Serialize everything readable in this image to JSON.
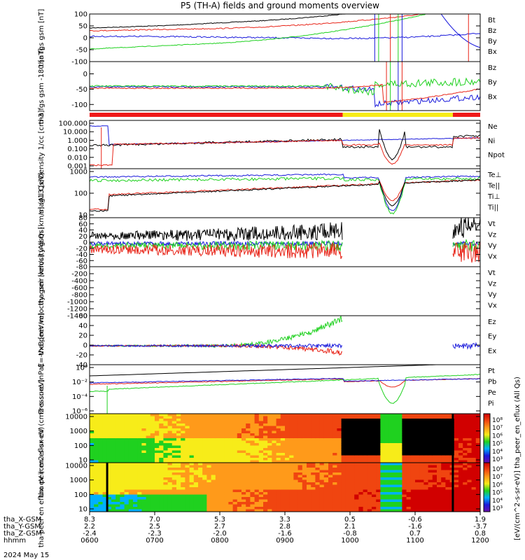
{
  "title": "P5 (TH-A) fields and ground moments overview",
  "date_label": "2024 May 15",
  "colors": {
    "black": "#000000",
    "red": "#e8261a",
    "green": "#1fd11f",
    "blue": "#1a1adb",
    "yellow": "#f7ec19",
    "bar_red": "#ef1a1a"
  },
  "chart_data": [
    {
      "type": "line",
      "panel": "fgs_gsm",
      "ylabel": "tha fgs gsm [nT]",
      "ylim": [
        -100,
        100
      ],
      "ticks": [
        "100",
        "50",
        "0",
        "-50",
        "-100"
      ],
      "tick_values": [
        100,
        50,
        0,
        -50,
        -100
      ],
      "legend": [
        {
          "name": "Bt",
          "color": "black"
        },
        {
          "name": "Bz",
          "color": "red"
        },
        {
          "name": "By",
          "color": "green"
        },
        {
          "name": "Bx",
          "color": "blue"
        }
      ]
    },
    {
      "type": "line",
      "panel": "fgs_dsl",
      "ylabel": "tha fgs gsm -180 [nT]",
      "ylim": [
        -120,
        40
      ],
      "ticks": [
        "0",
        "-50",
        "-100"
      ],
      "tick_values": [
        0,
        -50,
        -100
      ],
      "legend": [
        {
          "name": "Bz",
          "color": "red"
        },
        {
          "name": "By",
          "color": "green"
        },
        {
          "name": "Bx",
          "color": "blue"
        }
      ]
    },
    {
      "type": "line",
      "panel": "density",
      "ylabel": "Density 1/cc [cm-3]",
      "yscale": "log",
      "ticks": [
        "100.000",
        "10.000",
        "1.000",
        "0.100",
        "0.010",
        "0.001"
      ],
      "legend": [
        {
          "name": "Ne",
          "color": "red"
        },
        {
          "name": "Ni",
          "color": "black"
        },
        {
          "name": "Npot",
          "color": "blue"
        }
      ]
    },
    {
      "type": "line",
      "panel": "temperature",
      "ylabel": "mag13 [eV]",
      "yscale": "log",
      "ticks": [
        "1000",
        "100",
        "10"
      ],
      "legend": [
        {
          "name": "Te⊥",
          "color": "red"
        },
        {
          "name": "Te||",
          "color": "black"
        },
        {
          "name": "Ti⊥",
          "color": "blue"
        },
        {
          "name": "Ti||",
          "color": "green"
        }
      ]
    },
    {
      "type": "line",
      "panel": "peir_velocity",
      "ylabel": "tha peir velocity gsm [km/s] (All Qs)",
      "ylim": [
        -80,
        80
      ],
      "ticks": [
        "80",
        "60",
        "40",
        "20",
        "0",
        "-20",
        "-40",
        "-60",
        "-80"
      ],
      "tick_values": [
        80,
        60,
        40,
        20,
        0,
        -20,
        -40,
        -60,
        -80
      ],
      "legend": [
        {
          "name": "Vt",
          "color": "black"
        },
        {
          "name": "Vz",
          "color": "red"
        },
        {
          "name": "Vy",
          "color": "green"
        },
        {
          "name": "Vx",
          "color": "blue"
        }
      ]
    },
    {
      "type": "line",
      "panel": "peer_velocity",
      "ylabel": "tha peer velocity gsm [km/s] (All Qs)",
      "ylim": [
        -1400,
        0
      ],
      "ticks": [
        "-200",
        "-400",
        "-600",
        "-800",
        "-1000",
        "-1200",
        "-1400"
      ],
      "tick_values": [
        -200,
        -400,
        -600,
        -800,
        -1000,
        -1200,
        -1400
      ],
      "legend": [
        {
          "name": "Vt",
          "color": "black"
        },
        {
          "name": "Vz",
          "color": "red"
        },
        {
          "name": "Vy",
          "color": "green"
        },
        {
          "name": "Vx",
          "color": "blue"
        }
      ]
    },
    {
      "type": "line",
      "panel": "efield",
      "ylabel": "E=-VxB [mV/m]",
      "ylim": [
        -40,
        60
      ],
      "ticks": [
        "60",
        "40",
        "20",
        "0",
        "-20",
        "-40"
      ],
      "tick_values": [
        60,
        40,
        20,
        0,
        -20,
        -40
      ],
      "legend": [
        {
          "name": "Ez",
          "color": "red"
        },
        {
          "name": "Ey",
          "color": "green"
        },
        {
          "name": "Ex",
          "color": "blue"
        }
      ]
    },
    {
      "type": "line",
      "panel": "pressure",
      "ylabel": "Pressure [nPa]",
      "yscale": "log",
      "ticks": [
        "10⁰",
        "10⁻²",
        "10⁻⁴",
        "10⁻⁶"
      ],
      "legend": [
        {
          "name": "Pt",
          "color": "black"
        },
        {
          "name": "Pb",
          "color": "red"
        },
        {
          "name": "Pe",
          "color": "green"
        },
        {
          "name": "Pi",
          "color": "blue"
        }
      ]
    },
    {
      "type": "heatmap",
      "panel": "peir_en_eflux",
      "ylabel": "tha peir en eflux eV (cm2-s-sr-eV)",
      "yscale": "log",
      "ticks": [
        "10000",
        "1000",
        "100",
        "10"
      ],
      "colorbar_ticks": [
        "10⁸",
        "10⁷",
        "10⁶",
        "10⁵",
        "10⁴",
        "10³"
      ]
    },
    {
      "type": "heatmap",
      "panel": "peer_en_eflux",
      "ylabel": "tha peer en eflux eV (cm2-s-sr-eV)",
      "yscale": "log",
      "ticks": [
        "10000",
        "1000",
        "100",
        "10"
      ],
      "colorbar_ticks": [
        "10⁸",
        "10⁷",
        "10⁶",
        "10⁵",
        "10⁴",
        "10³"
      ]
    }
  ],
  "colorbar_label": "[eV/(cm^2-s-sr-eV)] tha_peer_en_eflux (All Qs)",
  "x_axis": {
    "rows": [
      {
        "label": "tha_X-GSM",
        "values": [
          "8.3",
          "7.0",
          "5.3",
          "3.3",
          "0.5",
          "-0.6",
          "1.9"
        ]
      },
      {
        "label": "tha_Y-GSM",
        "values": [
          "2.2",
          "2.5",
          "2.7",
          "2.8",
          "2.1",
          "-1.6",
          "-3.7"
        ]
      },
      {
        "label": "tha_Z-GSM",
        "values": [
          "-2.4",
          "-2.3",
          "-2.0",
          "-1.6",
          "-0.8",
          "0.7",
          "0.8"
        ]
      },
      {
        "label": "hhmm",
        "values": [
          "0600",
          "0700",
          "0800",
          "0900",
          "1000",
          "1100",
          "1200"
        ]
      }
    ]
  }
}
